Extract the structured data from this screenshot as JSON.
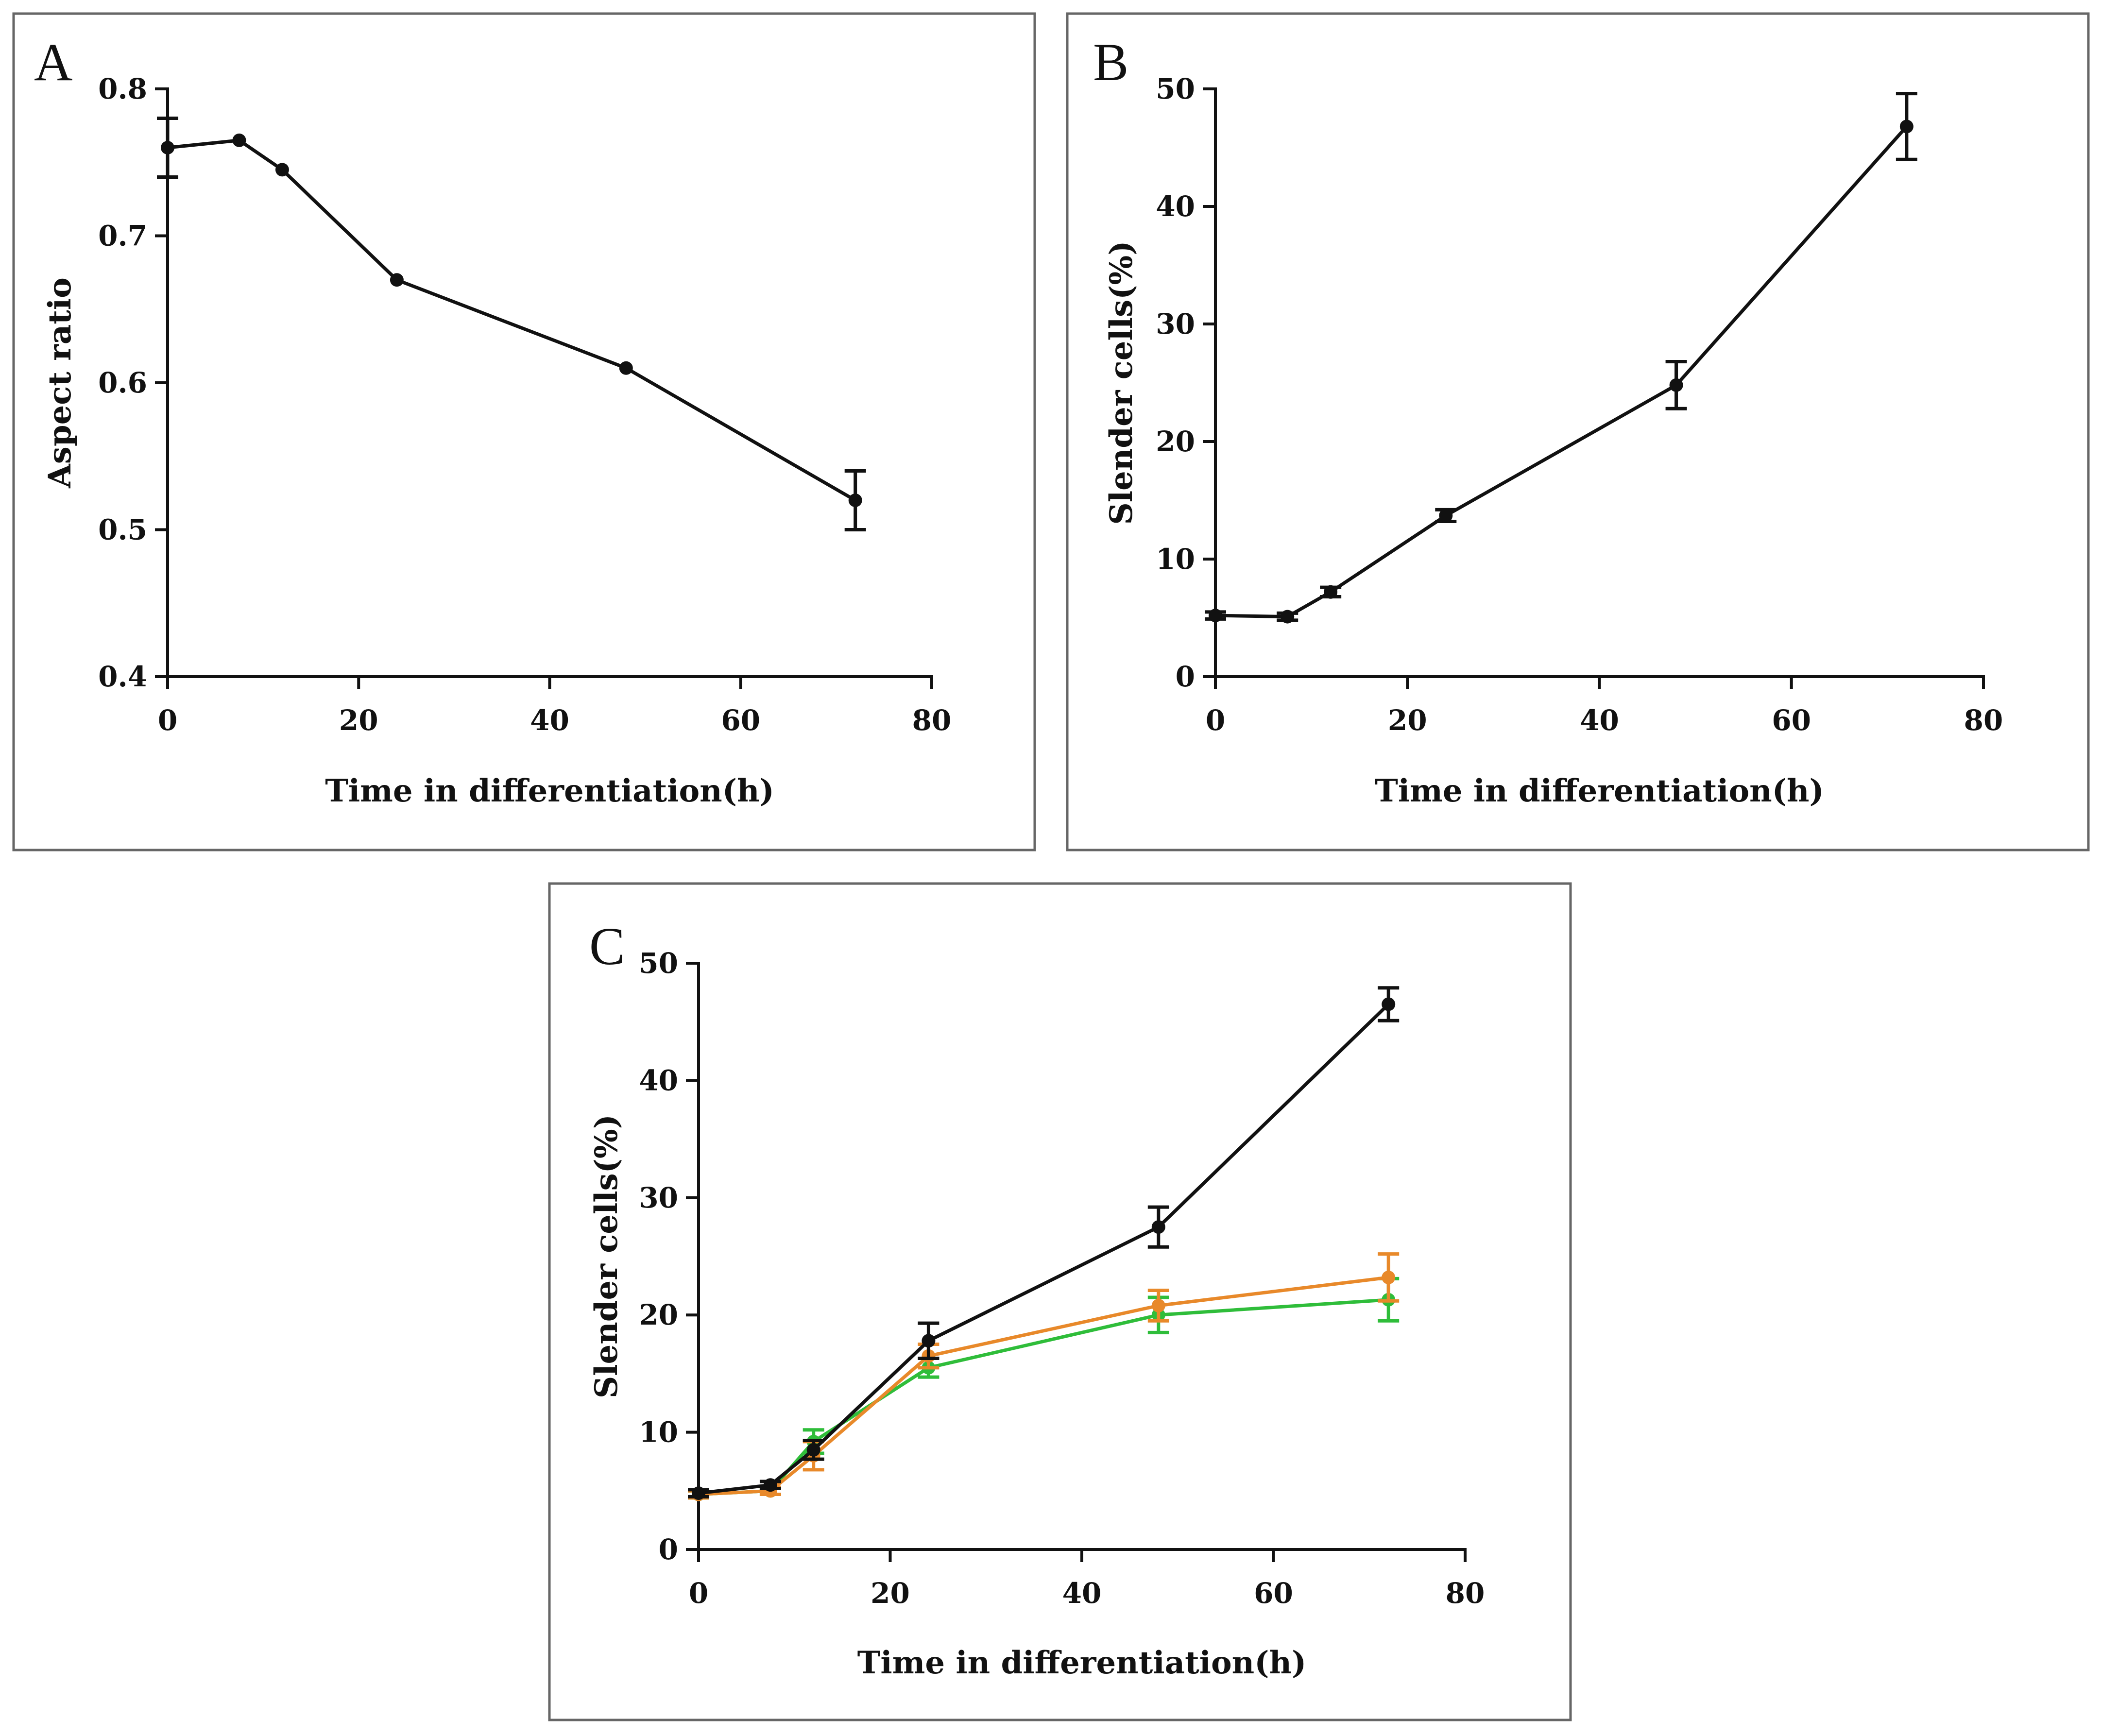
{
  "chart_data": [
    {
      "panel": "A",
      "type": "line",
      "xlabel": "Time in differentiation(h)",
      "ylabel": "Aspect ratio",
      "xlim": [
        0,
        80
      ],
      "ylim": [
        0.4,
        0.8
      ],
      "xticks": [
        0,
        20,
        40,
        60,
        80
      ],
      "yticks": [
        0.4,
        0.5,
        0.6,
        0.7,
        0.8
      ],
      "ytick_labels": [
        "0.4",
        "0.5",
        "0.6",
        "0.7",
        "0.8"
      ],
      "series": [
        {
          "name": "Aspect ratio",
          "color": "#111111",
          "x": [
            0,
            7.5,
            12,
            24,
            48,
            72
          ],
          "values": [
            0.76,
            0.765,
            0.745,
            0.67,
            0.61,
            0.52
          ],
          "errors": [
            0.02,
            0.0,
            0.0,
            0.0,
            0.0,
            0.02
          ]
        }
      ]
    },
    {
      "panel": "B",
      "type": "line",
      "xlabel": "Time in differentiation(h)",
      "ylabel": "Slender cells(%)",
      "xlim": [
        0,
        80
      ],
      "ylim": [
        0,
        50
      ],
      "xticks": [
        0,
        20,
        40,
        60,
        80
      ],
      "yticks": [
        0,
        10,
        20,
        30,
        40,
        50
      ],
      "ytick_labels": [
        "0",
        "10",
        "20",
        "30",
        "40",
        "50"
      ],
      "series": [
        {
          "name": "Slender cells",
          "color": "#111111",
          "x": [
            0,
            7.5,
            12,
            24,
            48,
            72
          ],
          "values": [
            5.2,
            5.1,
            7.2,
            13.7,
            24.8,
            46.8
          ],
          "errors": [
            0.3,
            0.3,
            0.4,
            0.5,
            2.0,
            2.8
          ]
        }
      ]
    },
    {
      "panel": "C",
      "type": "line",
      "xlabel": "Time in differentiation(h)",
      "ylabel": "Slender cells(%)",
      "xlim": [
        0,
        80
      ],
      "ylim": [
        0,
        50
      ],
      "xticks": [
        0,
        20,
        40,
        60,
        80
      ],
      "yticks": [
        0,
        10,
        20,
        30,
        40,
        50
      ],
      "ytick_labels": [
        "0",
        "10",
        "20",
        "30",
        "40",
        "50"
      ],
      "series": [
        {
          "name": "black series",
          "color": "#111111",
          "x": [
            0,
            7.5,
            12,
            24,
            48,
            72
          ],
          "values": [
            4.8,
            5.5,
            8.5,
            17.8,
            27.5,
            46.5
          ],
          "errors": [
            0.3,
            0.3,
            0.8,
            1.5,
            1.7,
            1.4
          ]
        },
        {
          "name": "orange series",
          "color": "#e8892a",
          "x": [
            0,
            7.5,
            12,
            24,
            48,
            72
          ],
          "values": [
            4.7,
            5.0,
            8.0,
            16.5,
            20.8,
            23.2
          ],
          "errors": [
            0.3,
            0.3,
            1.2,
            1.0,
            1.3,
            2.0
          ]
        },
        {
          "name": "green series",
          "color": "#2fbd3a",
          "x": [
            0,
            7.5,
            12,
            24,
            48,
            72
          ],
          "values": [
            4.7,
            5.0,
            9.2,
            15.5,
            20.0,
            21.3
          ],
          "errors": [
            0.3,
            0.3,
            1.0,
            0.8,
            1.5,
            1.8
          ]
        }
      ]
    }
  ]
}
